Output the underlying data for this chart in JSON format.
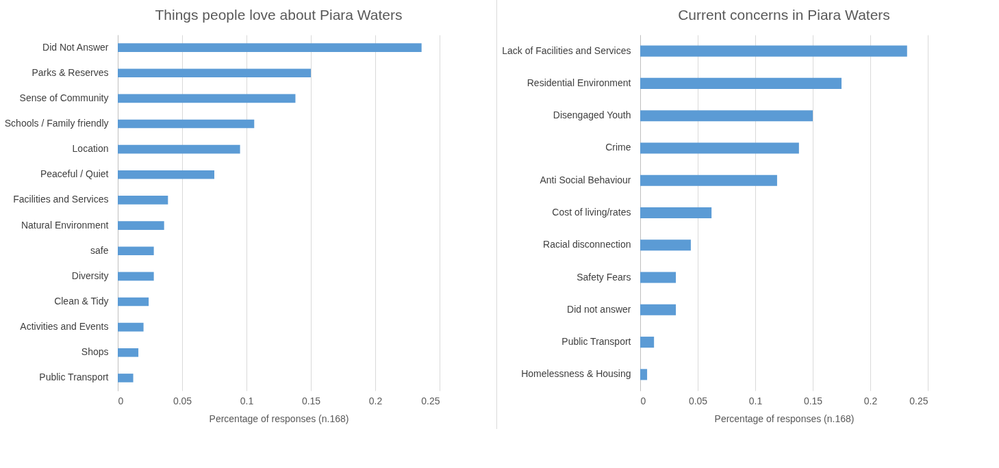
{
  "chart_data": [
    {
      "type": "bar",
      "orientation": "horizontal",
      "title": "Things people love about Piara Waters",
      "xlabel": "Percentage of responses (n.168)",
      "categories": [
        "Did Not Answer",
        "Parks & Reserves",
        "Sense of Community",
        "Schools / Family friendly",
        "Location",
        "Peaceful / Quiet",
        "Facilities and Services",
        "Natural Environment",
        "safe",
        "Diversity",
        "Clean & Tidy",
        "Activities and Events",
        "Shops",
        "Public Transport"
      ],
      "values": [
        0.236,
        0.15,
        0.138,
        0.106,
        0.095,
        0.075,
        0.039,
        0.036,
        0.028,
        0.028,
        0.024,
        0.02,
        0.016,
        0.012
      ],
      "color": "#5b9bd5",
      "xlim": [
        0,
        0.25
      ],
      "xticks": [
        0,
        0.05,
        0.1,
        0.15,
        0.2,
        0.25
      ],
      "grid": "x"
    },
    {
      "type": "bar",
      "orientation": "horizontal",
      "title": "Current concerns in Piara Waters",
      "xlabel": "Percentage of responses (n.168)",
      "categories": [
        "Lack of Facilities and Services",
        "Residential Environment",
        "Disengaged Youth",
        "Crime",
        "Anti Social Behaviour",
        "Cost of living/rates",
        "Racial disconnection",
        "Safety Fears",
        "Did not answer",
        "Public Transport",
        "Homelessness & Housing"
      ],
      "values": [
        0.232,
        0.175,
        0.15,
        0.138,
        0.119,
        0.062,
        0.044,
        0.031,
        0.031,
        0.012,
        0.006
      ],
      "color": "#5b9bd5",
      "xlim": [
        0,
        0.25
      ],
      "xticks": [
        0,
        0.05,
        0.1,
        0.15,
        0.2,
        0.25
      ],
      "grid": "x"
    }
  ]
}
